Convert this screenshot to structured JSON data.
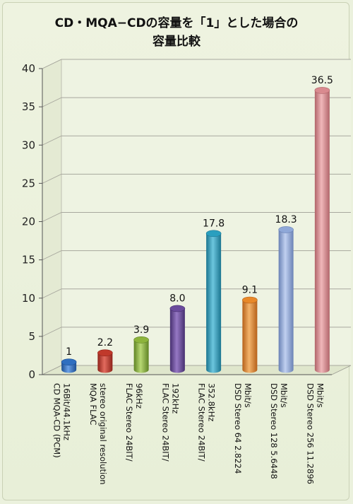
{
  "chart_data": {
    "type": "bar",
    "title_line1": "CD・MQA−CDの容量を「1」とした場合の",
    "title_line2": "容量比較",
    "xlabel": "",
    "ylabel": "",
    "ylim": [
      0,
      40
    ],
    "yticks": [
      0,
      5,
      10,
      15,
      20,
      25,
      30,
      35,
      40
    ],
    "grid": true,
    "categories": [
      [
        "CD MQA-CD (PCM)",
        "16Bit/44.1kHz"
      ],
      [
        "MQA FLAC",
        "stereo original resolution"
      ],
      [
        "FLAC Stereo 24BIT/",
        "96kHz"
      ],
      [
        "FLAC Stereo 24BIT/",
        "192kHz"
      ],
      [
        "FLAC Stereo 24BIT/",
        "352.8kHz"
      ],
      [
        "DSD Stereo 64 2.8224",
        "Mbit/s"
      ],
      [
        "DSD Stereo 128 5.6448",
        "Mbit/s"
      ],
      [
        "DSD Stereo 256 11.2896",
        "Mbit/s"
      ]
    ],
    "values": [
      1,
      2.2,
      3.9,
      8.0,
      17.8,
      9.1,
      18.3,
      36.5
    ],
    "data_labels": [
      "1",
      "2.2",
      "3.9",
      "8.0",
      "17.8",
      "9.1",
      "18.3",
      "36.5"
    ],
    "colors": [
      "#2f6fc0",
      "#c0392b",
      "#8db43c",
      "#6a4a9c",
      "#2a9fbf",
      "#e8892a",
      "#8fa8d8",
      "#d98a8f"
    ],
    "colors_dark": [
      "#1d4f93",
      "#8f231a",
      "#5f8324",
      "#473070",
      "#1b7590",
      "#b5611a",
      "#6a82b5",
      "#b1656a"
    ],
    "colors_light": [
      "#6aa0e6",
      "#e26b5e",
      "#b8d873",
      "#9678c4",
      "#6cc6de",
      "#f3b36b",
      "#c0d0f0",
      "#f0b7ba"
    ]
  }
}
